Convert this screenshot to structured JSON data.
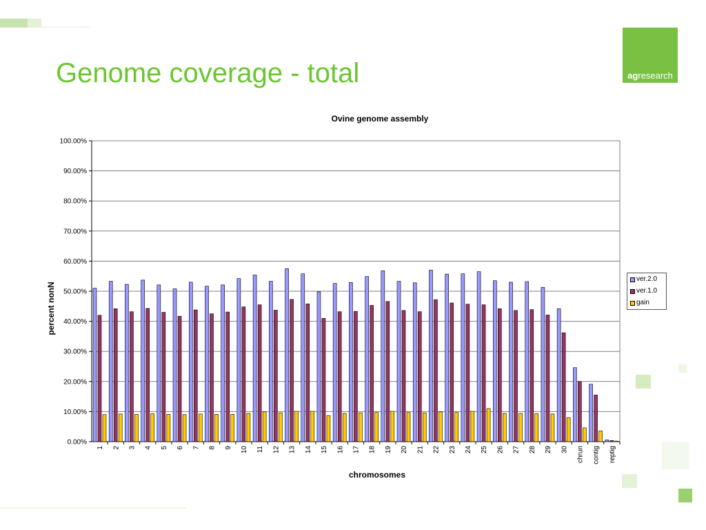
{
  "slide": {
    "title": "Genome coverage - total",
    "logo": {
      "bold": "ag",
      "rest": "research"
    }
  },
  "colors": {
    "title": "#6cc531",
    "logo_bg": "#7ac143",
    "ver2": "#9999ff",
    "ver1": "#993366",
    "gain": "#ffcc00"
  },
  "chart_data": {
    "type": "bar",
    "title": "Ovine genome assembly",
    "xlabel": "chromosomes",
    "ylabel": "percent nonN",
    "ylim": [
      0,
      100
    ],
    "yticks": [
      "0.00%",
      "10.00%",
      "20.00%",
      "30.00%",
      "40.00%",
      "50.00%",
      "60.00%",
      "70.00%",
      "80.00%",
      "90.00%",
      "100.00%"
    ],
    "grid": true,
    "legend_position": "right",
    "categories": [
      "1",
      "2",
      "3",
      "4",
      "5",
      "6",
      "7",
      "8",
      "9",
      "10",
      "11",
      "12",
      "13",
      "14",
      "15",
      "16",
      "17",
      "18",
      "19",
      "20",
      "21",
      "22",
      "23",
      "24",
      "25",
      "26",
      "27",
      "28",
      "29",
      "30",
      "chrun",
      "contig",
      "reptig"
    ],
    "series": [
      {
        "name": "ver.2.0",
        "color": "#9999ff",
        "values": [
          51.0,
          53.3,
          52.3,
          53.7,
          52.1,
          50.8,
          53.0,
          51.7,
          52.1,
          54.2,
          55.4,
          53.3,
          57.5,
          55.8,
          49.8,
          52.6,
          52.9,
          54.9,
          56.8,
          53.3,
          52.8,
          57.0,
          55.7,
          55.8,
          56.5,
          53.5,
          53.0,
          53.2,
          51.3,
          44.2,
          24.6,
          19.1,
          0.6
        ]
      },
      {
        "name": "ver.1.0",
        "color": "#993366",
        "values": [
          42.0,
          44.2,
          43.2,
          44.3,
          43.0,
          41.7,
          43.8,
          42.5,
          43.1,
          44.8,
          45.5,
          43.7,
          47.3,
          45.8,
          41.0,
          43.2,
          43.3,
          45.3,
          46.6,
          43.6,
          43.2,
          47.2,
          46.1,
          45.7,
          45.5,
          44.2,
          43.6,
          43.9,
          42.1,
          36.2,
          20.0,
          15.5,
          0.4
        ]
      },
      {
        "name": "gain",
        "color": "#ffcc00",
        "values": [
          9.0,
          9.2,
          9.1,
          9.3,
          9.1,
          9.0,
          9.2,
          9.1,
          9.1,
          9.4,
          9.9,
          9.6,
          10.1,
          10.1,
          8.7,
          9.4,
          9.6,
          9.7,
          10.1,
          9.7,
          9.6,
          9.9,
          9.7,
          10.1,
          11.0,
          9.4,
          9.4,
          9.3,
          9.2,
          8.0,
          4.6,
          3.6,
          0.2
        ]
      }
    ]
  }
}
